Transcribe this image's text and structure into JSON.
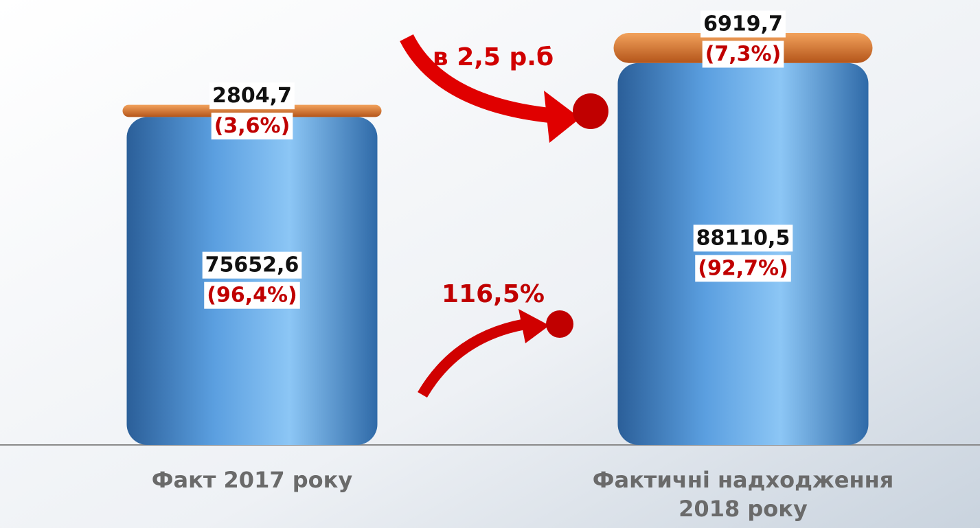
{
  "chart_data": {
    "type": "bar",
    "stacked": true,
    "categories": [
      "Факт 2017 року",
      "Фактичні надходження 2018 року"
    ],
    "series": [
      {
        "color": "#4f95d6",
        "values": [
          75652.6,
          88110.5
        ],
        "value_labels": [
          "75652,6",
          "88110,5"
        ],
        "percent_labels": [
          "(96,4%)",
          "(92,7%)"
        ]
      },
      {
        "color": "#e07a2c",
        "values": [
          2804.7,
          6919.7
        ],
        "value_labels": [
          "2804,7",
          "6919,7"
        ],
        "percent_labels": [
          "(3,6%)",
          "(7,3%)"
        ]
      }
    ],
    "annotations": [
      "в 2,5 р.б",
      "116,5%"
    ]
  }
}
